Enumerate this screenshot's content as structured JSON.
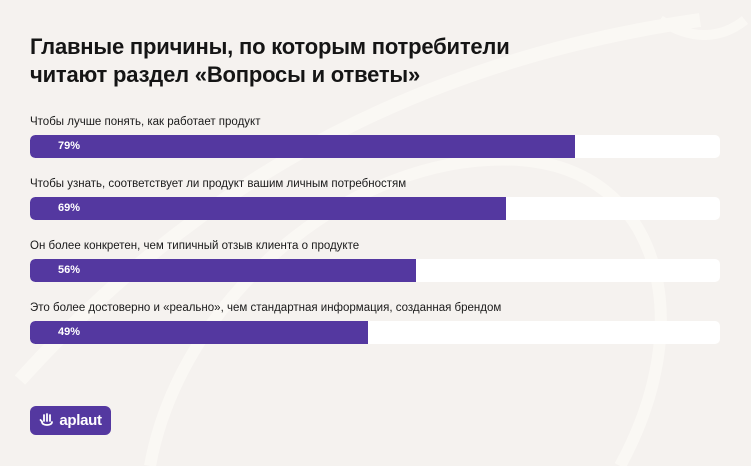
{
  "title": {
    "line1": "Главные причины, по которым потребители",
    "line2": "читают раздел «Вопросы и ответы»"
  },
  "colors": {
    "background": "#f5f2ef",
    "bar": "#5438a0",
    "track": "#ffffff",
    "text": "#151515",
    "logo_bg": "#5438a0"
  },
  "rows": [
    {
      "label": "Чтобы лучше понять, как работает продукт",
      "value": 79,
      "value_label": "79%"
    },
    {
      "label": "Чтобы узнать, соответствует ли продукт вашим личным потребностям",
      "value": 69,
      "value_label": "69%"
    },
    {
      "label": "Он более конкретен, чем типичный отзыв клиента о продукте",
      "value": 56,
      "value_label": "56%"
    },
    {
      "label": "Это более достоверно и «реально», чем стандартная информация, созданная брендом",
      "value": 49,
      "value_label": "49%"
    }
  ],
  "logo": {
    "text": "aplaut",
    "icon": "hand-icon"
  },
  "chart_data": {
    "type": "bar",
    "orientation": "horizontal",
    "title": "Главные причины, по которым потребители читают раздел «Вопросы и ответы»",
    "categories": [
      "Чтобы лучше понять, как работает продукт",
      "Чтобы узнать, соответствует ли продукт вашим личным потребностям",
      "Он более конкретен, чем типичный отзыв клиента о продукте",
      "Это более достоверно и «реально», чем стандартная информация, созданная брендом"
    ],
    "values": [
      79,
      69,
      56,
      49
    ],
    "value_labels": [
      "79%",
      "69%",
      "56%",
      "49%"
    ],
    "xlabel": "",
    "ylabel": "",
    "xlim": [
      0,
      100
    ],
    "unit": "%",
    "grid": false,
    "legend": null
  }
}
